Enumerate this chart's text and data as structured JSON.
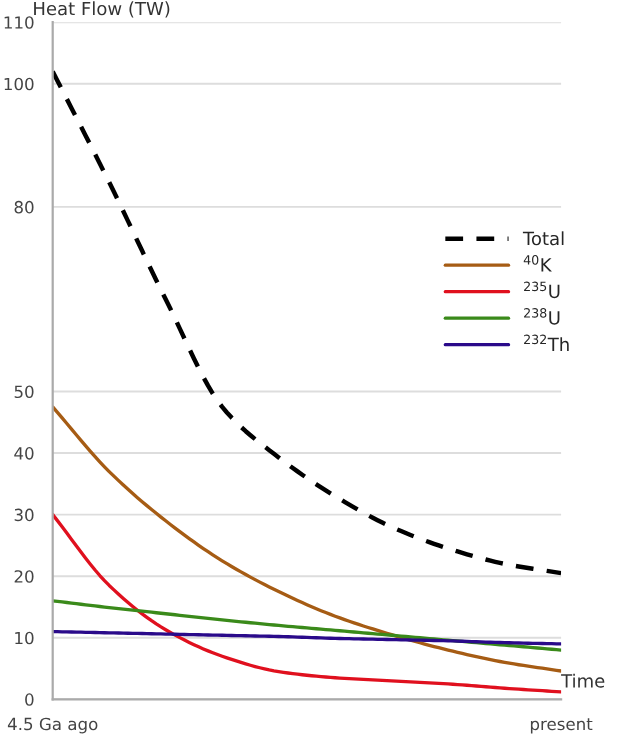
{
  "chart_data": {
    "type": "line",
    "ylabel": "Heat Flow (TW)",
    "xlabel": "Time",
    "categories": [
      "4.5 Ga ago",
      null,
      null,
      null,
      null,
      null,
      null,
      null,
      null,
      "present"
    ],
    "series": [
      {
        "name": "Total",
        "color": "#000000",
        "line_style": "dashed",
        "values": [
          102,
          84,
          65,
          47.5,
          39.3,
          33,
          28,
          24.5,
          22,
          20.5
        ]
      },
      {
        "name": "$^{40}$K",
        "color": "#a65c14",
        "values": [
          47.5,
          37,
          29,
          22.5,
          17.5,
          13.5,
          10.5,
          8,
          6,
          4.6
        ]
      },
      {
        "name": "$^{235}$U",
        "color": "#e0101e",
        "values": [
          30,
          18.5,
          11.3,
          7,
          4.5,
          3.5,
          3,
          2.5,
          1.8,
          1.2
        ]
      },
      {
        "name": "$^{238}$U",
        "color": "#3a8a1a",
        "values": [
          16,
          14.9,
          13.9,
          12.9,
          12,
          11.2,
          10.4,
          9.6,
          8.8,
          8
        ]
      },
      {
        "name": "$^{232}$Th",
        "color": "#2a0a8a",
        "values": [
          11,
          10.8,
          10.6,
          10.4,
          10.2,
          9.9,
          9.7,
          9.5,
          9.2,
          9
        ]
      }
    ],
    "ylim": [
      0,
      110
    ],
    "yticks": [
      0,
      10,
      20,
      30,
      40,
      50,
      80,
      100,
      110
    ],
    "grid": "y",
    "legend": "right",
    "line_style": "solid",
    "marker": "none"
  }
}
